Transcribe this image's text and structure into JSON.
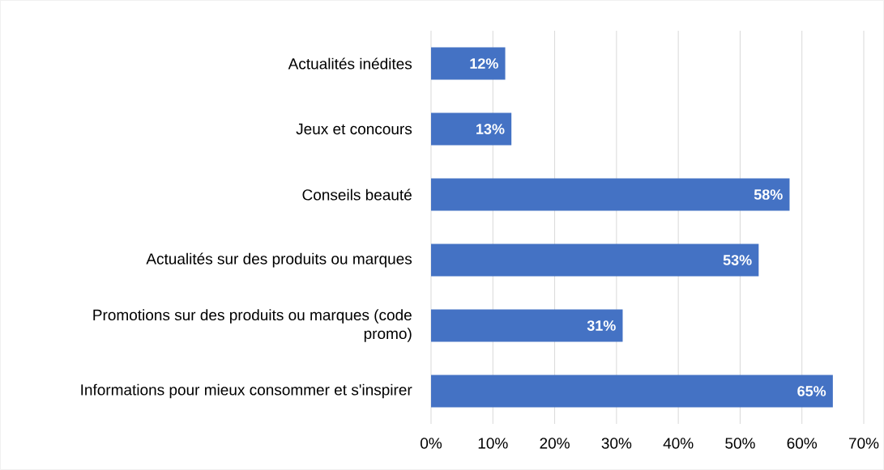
{
  "chart_data": {
    "type": "bar",
    "orientation": "horizontal",
    "categories": [
      "Actualités inédites",
      "Jeux et concours",
      "Conseils beauté",
      "Actualités sur des produits ou marques",
      "Promotions sur des produits ou marques (code promo)",
      "Informations pour mieux consommer et s'inspirer"
    ],
    "values": [
      12,
      13,
      58,
      53,
      31,
      65
    ],
    "value_labels": [
      "12%",
      "13%",
      "58%",
      "53%",
      "31%",
      "65%"
    ],
    "color": "#4472c4",
    "xlim": [
      0,
      70
    ],
    "xticks": [
      {
        "value": 0,
        "label": "0%"
      },
      {
        "value": 10,
        "label": "10%"
      },
      {
        "value": 20,
        "label": "20%"
      },
      {
        "value": 30,
        "label": "30%"
      },
      {
        "value": 40,
        "label": "40%"
      },
      {
        "value": 50,
        "label": "50%"
      },
      {
        "value": 60,
        "label": "60%"
      },
      {
        "value": 70,
        "label": "70%"
      }
    ],
    "grid": "x"
  }
}
